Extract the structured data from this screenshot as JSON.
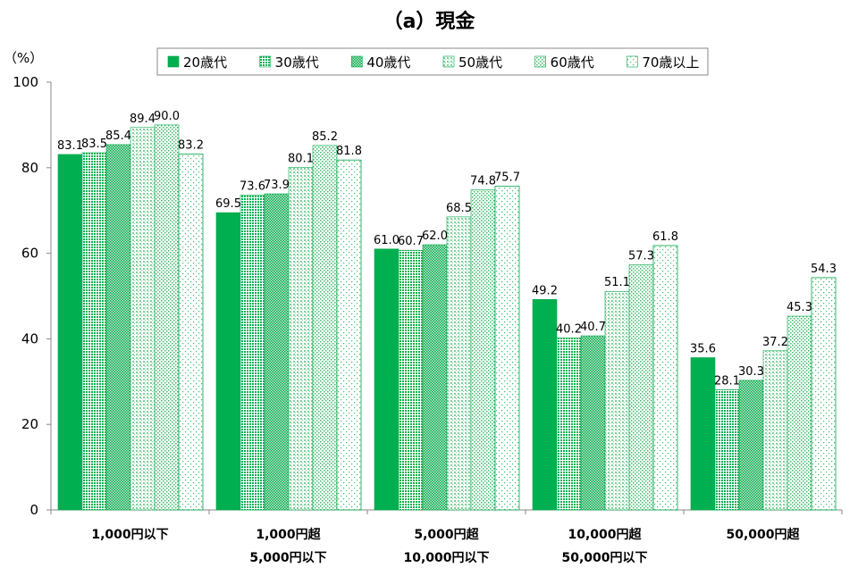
{
  "chart_data": {
    "type": "bar",
    "title": "（a）現金",
    "ylabel": "（%）",
    "ylim": [
      0,
      100
    ],
    "yticks": [
      0,
      20,
      40,
      60,
      80,
      100
    ],
    "grid": false,
    "legend_position": "top",
    "categories": [
      [
        "1,000円以下"
      ],
      [
        "1,000円超",
        "5,000円以下"
      ],
      [
        "5,000円超",
        "10,000円以下"
      ],
      [
        "10,000円超",
        "50,000円以下"
      ],
      [
        "50,000円超"
      ]
    ],
    "series": [
      {
        "name": "20歳代",
        "values": [
          83.1,
          69.5,
          61.0,
          49.2,
          35.6
        ],
        "color": "#00b050",
        "pattern": "solid"
      },
      {
        "name": "30歳代",
        "values": [
          83.5,
          73.6,
          60.7,
          40.2,
          28.1
        ],
        "color": "#00b050",
        "pattern": "dense-grid"
      },
      {
        "name": "40歳代",
        "values": [
          85.4,
          73.9,
          62.0,
          40.7,
          30.3
        ],
        "color": "#4fc27a",
        "pattern": "checker"
      },
      {
        "name": "50歳代",
        "values": [
          89.4,
          80.1,
          68.5,
          51.1,
          37.2
        ],
        "color": "#7fd19c",
        "pattern": "light-grid"
      },
      {
        "name": "60歳代",
        "values": [
          90.0,
          85.2,
          74.8,
          57.3,
          45.3
        ],
        "color": "#7fd19c",
        "pattern": "sparse-dots"
      },
      {
        "name": "70歳以上",
        "values": [
          83.2,
          81.8,
          75.7,
          61.8,
          54.3
        ],
        "color": "#4fc27a",
        "pattern": "very-sparse-dots"
      }
    ]
  }
}
